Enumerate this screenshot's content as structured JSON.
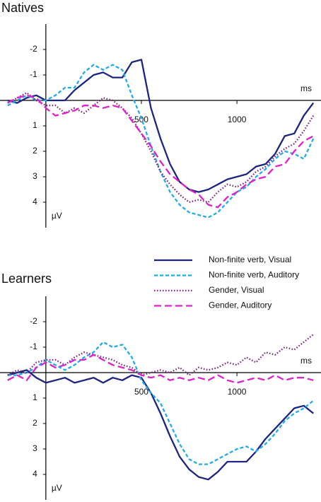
{
  "chart_data": [
    {
      "type": "line",
      "title": "Natives",
      "x_label": "ms",
      "y_label": "µV",
      "y_reversed": true,
      "xlim": [
        -240,
        1440
      ],
      "xticks": [
        500,
        1000
      ],
      "ylim": [
        -3,
        5
      ],
      "yticks": [
        -2,
        -1,
        1,
        2,
        3,
        4
      ],
      "x": [
        -200,
        -150,
        -100,
        -50,
        0,
        50,
        100,
        150,
        200,
        250,
        300,
        350,
        400,
        450,
        500,
        550,
        600,
        650,
        700,
        750,
        800,
        850,
        900,
        950,
        1000,
        1050,
        1100,
        1150,
        1200,
        1250,
        1300,
        1350,
        1400
      ],
      "series": [
        {
          "name": "Non-finite verb, Visual",
          "color": "#1c2580",
          "dash": "solid",
          "values": [
            0,
            0.1,
            -0.1,
            -0.2,
            0,
            0,
            0,
            -0.4,
            -0.7,
            -1.0,
            -1.1,
            -0.9,
            -0.9,
            -1.5,
            -1.6,
            0.3,
            1.5,
            2.5,
            3.2,
            3.5,
            3.6,
            3.5,
            3.3,
            3.1,
            3.0,
            2.9,
            2.6,
            2.5,
            2.1,
            1.4,
            1.3,
            0.6,
            0.1
          ]
        },
        {
          "name": "Non-finite verb, Auditory",
          "color": "#22aaee",
          "dash": "dashed",
          "values": [
            0.2,
            0,
            -0.2,
            0,
            0,
            -0.2,
            -0.5,
            -0.5,
            -1.1,
            -1.4,
            -1.2,
            -1.4,
            -1.2,
            -0.2,
            0.7,
            1.8,
            2.8,
            3.6,
            4.1,
            4.4,
            4.5,
            4.6,
            4.4,
            4.0,
            3.6,
            3.4,
            3.0,
            2.7,
            2.3,
            2.0,
            2.1,
            2.3,
            1.5
          ]
        },
        {
          "name": "Gender, Visual",
          "color": "#7a1f7a",
          "dash": "dotted",
          "values": [
            0.1,
            -0.1,
            -0.3,
            0,
            0.2,
            0.2,
            0.5,
            0.3,
            0.5,
            0.2,
            -0.1,
            0,
            0.3,
            0.7,
            1.3,
            2.0,
            2.8,
            3.3,
            3.7,
            4.0,
            3.9,
            4.0,
            3.6,
            3.3,
            3.4,
            3.2,
            2.8,
            2.6,
            2.2,
            1.9,
            1.7,
            1.2,
            0.6
          ]
        },
        {
          "name": "Gender, Auditory",
          "color": "#e020c8",
          "dash": "long-dashed",
          "values": [
            0.1,
            -0.1,
            -0.2,
            -0.1,
            0.3,
            0.6,
            0.5,
            0.4,
            0.2,
            0.2,
            0.3,
            0.2,
            0.3,
            0.8,
            1.3,
            1.8,
            2.4,
            2.9,
            3.2,
            3.5,
            3.7,
            4.1,
            4.2,
            3.8,
            3.6,
            3.3,
            3.1,
            3.0,
            2.6,
            2.5,
            2.0,
            1.6,
            1.4
          ]
        }
      ]
    },
    {
      "type": "line",
      "title": "Learners",
      "x_label": "ms",
      "y_label": "µV",
      "y_reversed": true,
      "xlim": [
        -240,
        1440
      ],
      "xticks": [
        500,
        1000
      ],
      "ylim": [
        -3,
        5
      ],
      "yticks": [
        -2,
        -1,
        1,
        2,
        3,
        4
      ],
      "x": [
        -200,
        -150,
        -100,
        -50,
        0,
        50,
        100,
        150,
        200,
        250,
        300,
        350,
        400,
        450,
        500,
        550,
        600,
        650,
        700,
        750,
        800,
        850,
        900,
        950,
        1000,
        1050,
        1100,
        1150,
        1200,
        1250,
        1300,
        1350,
        1400
      ],
      "series": [
        {
          "color": "#1c2580",
          "dash": "solid",
          "values": [
            0.1,
            0,
            -0.1,
            0.2,
            0.4,
            0.3,
            0.2,
            0.4,
            0.3,
            0.2,
            0.4,
            0.2,
            0.3,
            0.1,
            0.2,
            0.8,
            1.6,
            2.5,
            3.3,
            3.8,
            4.1,
            4.2,
            3.9,
            3.5,
            3.5,
            3.5,
            3.1,
            2.6,
            2.2,
            1.8,
            1.4,
            1.3,
            1.6
          ]
        },
        {
          "color": "#22aaee",
          "dash": "dashed",
          "values": [
            0.1,
            0.1,
            0,
            -0.2,
            -0.5,
            -0.3,
            -0.1,
            -0.3,
            -0.6,
            -0.8,
            -1.2,
            -1.0,
            -1.1,
            -0.6,
            0.3,
            0.8,
            1.2,
            2.0,
            2.8,
            3.4,
            3.6,
            3.6,
            3.4,
            3.2,
            3.0,
            2.9,
            3.1,
            2.8,
            2.4,
            1.9,
            1.6,
            1.4,
            1.1
          ]
        },
        {
          "color": "#7a1f7a",
          "dash": "dotted",
          "values": [
            0.1,
            -0.1,
            0,
            -0.4,
            -0.5,
            -0.5,
            -0.3,
            -0.6,
            -0.8,
            -0.7,
            -0.6,
            -0.5,
            -0.3,
            -0.2,
            0.1,
            0,
            -0.1,
            0,
            -0.2,
            0.1,
            -0.2,
            -0.1,
            -0.2,
            -0.4,
            -0.3,
            -0.6,
            -0.4,
            -0.8,
            -0.7,
            -1.0,
            -0.9,
            -1.2,
            -1.5
          ]
        },
        {
          "color": "#e020c8",
          "dash": "long-dashed",
          "values": [
            0.3,
            0.1,
            0.3,
            -0.2,
            -0.4,
            -0.2,
            -0.3,
            -0.5,
            -0.5,
            -0.7,
            -0.5,
            -0.3,
            -0.2,
            -0.1,
            0.1,
            0.2,
            0.1,
            0.3,
            0.2,
            0.3,
            0.2,
            0.3,
            0.1,
            0.3,
            0.4,
            0.3,
            0.2,
            0.3,
            0.1,
            0.3,
            0.2,
            0.2,
            0.3
          ]
        }
      ]
    }
  ]
}
